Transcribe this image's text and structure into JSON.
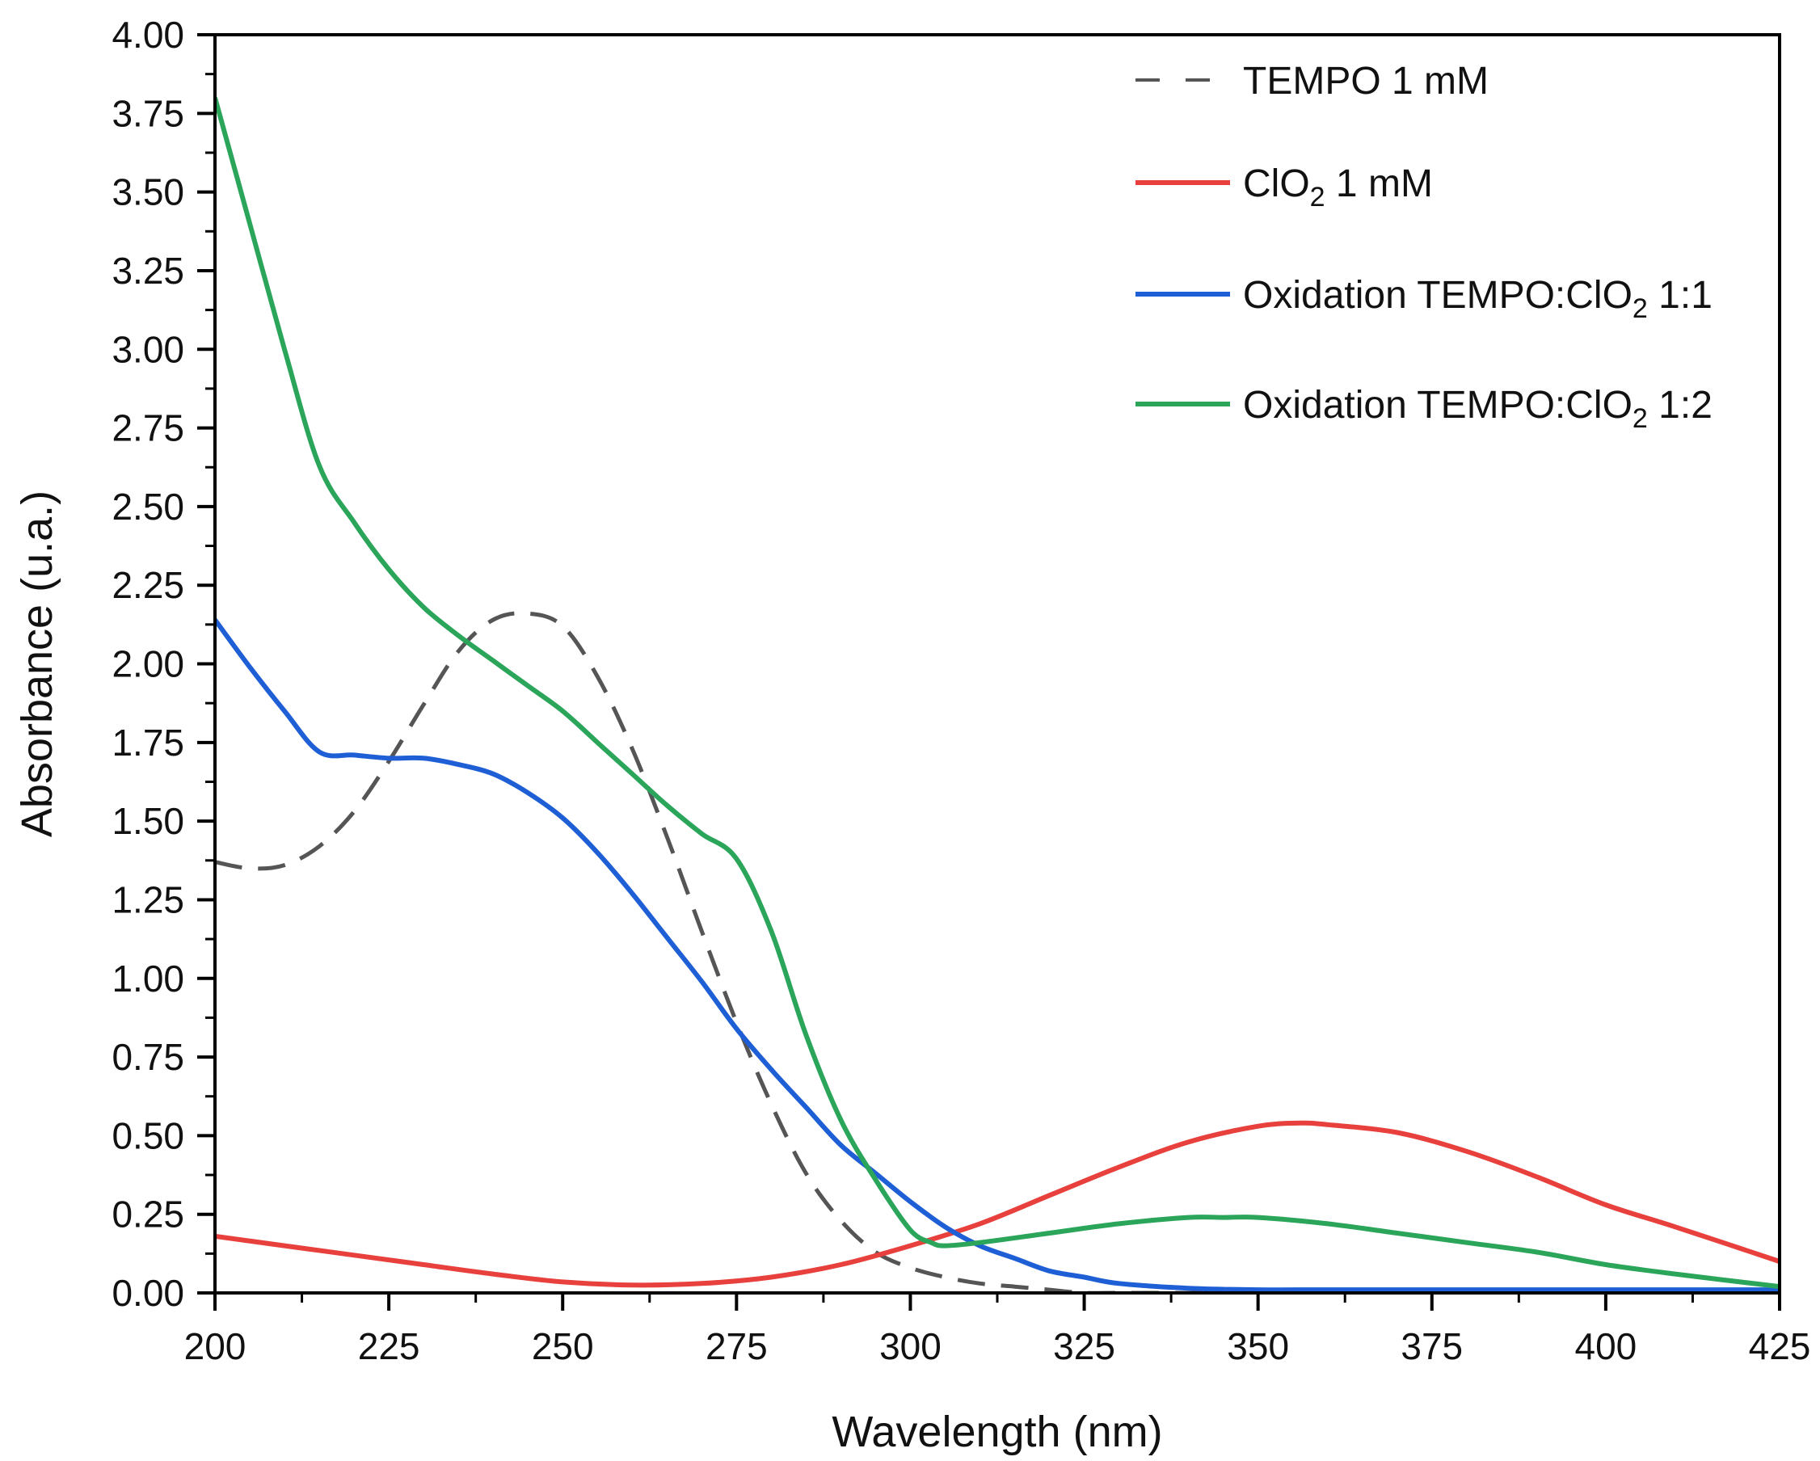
{
  "chart_data": {
    "type": "line",
    "xlabel": "Wavelength (nm)",
    "ylabel": "Absorbance (u.a.)",
    "xlim": [
      200,
      425
    ],
    "ylim": [
      0,
      4
    ],
    "xticks": [
      200,
      225,
      250,
      275,
      300,
      325,
      350,
      375,
      400,
      425
    ],
    "xtick_labels": [
      "200",
      "225",
      "250",
      "275",
      "300",
      "325",
      "350",
      "375",
      "400",
      "425"
    ],
    "yticks": [
      0,
      0.25,
      0.5,
      0.75,
      1.0,
      1.25,
      1.5,
      1.75,
      2.0,
      2.25,
      2.5,
      2.75,
      3.0,
      3.25,
      3.5,
      3.75,
      4.0
    ],
    "ytick_labels": [
      "0.00",
      "0.25",
      "0.50",
      "0.75",
      "1.00",
      "1.25",
      "1.50",
      "1.75",
      "2.00",
      "2.25",
      "2.50",
      "2.75",
      "3.00",
      "3.25",
      "3.50",
      "3.75",
      "4.00"
    ],
    "grid": false,
    "legend_position": "top-right",
    "series": [
      {
        "name": "TEMPO 1 mM",
        "legend_main": "TEMPO 1 mM",
        "legend_sub": "",
        "legend_tail": "",
        "color": "#555555",
        "dash": "dashed",
        "x": [
          200,
          205,
          210,
          215,
          220,
          225,
          230,
          235,
          240,
          245,
          250,
          255,
          260,
          265,
          270,
          275,
          280,
          285,
          290,
          295,
          300,
          305,
          310,
          315,
          320,
          325,
          330,
          340,
          350,
          360
        ],
        "y": [
          1.37,
          1.35,
          1.36,
          1.42,
          1.53,
          1.69,
          1.87,
          2.04,
          2.14,
          2.16,
          2.12,
          1.96,
          1.73,
          1.45,
          1.15,
          0.86,
          0.6,
          0.38,
          0.23,
          0.13,
          0.08,
          0.05,
          0.03,
          0.02,
          0.01,
          0.0,
          0.0,
          0.0,
          0.0,
          0.0
        ]
      },
      {
        "name": "ClO2 1 mM",
        "legend_main": "ClO",
        "legend_sub": "2",
        "legend_tail": " 1 mM",
        "color": "#e8403c",
        "dash": "solid",
        "x": [
          200,
          210,
          220,
          230,
          240,
          250,
          260,
          270,
          280,
          290,
          300,
          310,
          320,
          330,
          340,
          350,
          356,
          360,
          370,
          380,
          390,
          400,
          410,
          425
        ],
        "y": [
          0.18,
          0.15,
          0.12,
          0.09,
          0.06,
          0.035,
          0.025,
          0.03,
          0.05,
          0.09,
          0.15,
          0.22,
          0.31,
          0.4,
          0.48,
          0.53,
          0.54,
          0.535,
          0.51,
          0.45,
          0.37,
          0.28,
          0.21,
          0.1
        ]
      },
      {
        "name": "Oxidation TEMPO:ClO2 1:1",
        "legend_main": "Oxidation TEMPO:ClO",
        "legend_sub": "2",
        "legend_tail": " 1:1",
        "color": "#1f5fd6",
        "dash": "solid",
        "x": [
          200,
          205,
          210,
          215,
          220,
          225,
          230,
          235,
          240,
          245,
          250,
          255,
          260,
          265,
          270,
          275,
          280,
          285,
          290,
          295,
          300,
          305,
          310,
          315,
          320,
          325,
          330,
          340,
          350,
          360,
          380,
          400,
          425
        ],
        "y": [
          2.14,
          1.99,
          1.85,
          1.72,
          1.71,
          1.7,
          1.7,
          1.68,
          1.65,
          1.59,
          1.51,
          1.4,
          1.27,
          1.13,
          0.99,
          0.84,
          0.71,
          0.59,
          0.47,
          0.38,
          0.29,
          0.21,
          0.15,
          0.11,
          0.07,
          0.05,
          0.03,
          0.015,
          0.01,
          0.01,
          0.01,
          0.01,
          0.01
        ]
      },
      {
        "name": "Oxidation TEMPO:ClO2 1:2",
        "legend_main": "Oxidation TEMPO:ClO",
        "legend_sub": "2",
        "legend_tail": " 1:2",
        "color": "#2aa55a",
        "dash": "solid",
        "x": [
          200,
          205,
          210,
          215,
          220,
          225,
          230,
          235,
          240,
          245,
          250,
          255,
          260,
          265,
          270,
          275,
          280,
          285,
          290,
          295,
          300,
          303,
          305,
          310,
          320,
          330,
          340,
          345,
          350,
          360,
          370,
          380,
          390,
          400,
          410,
          425
        ],
        "y": [
          3.8,
          3.4,
          3.0,
          2.63,
          2.45,
          2.3,
          2.18,
          2.09,
          2.01,
          1.93,
          1.85,
          1.75,
          1.65,
          1.55,
          1.46,
          1.38,
          1.15,
          0.82,
          0.55,
          0.36,
          0.2,
          0.16,
          0.15,
          0.16,
          0.19,
          0.22,
          0.24,
          0.24,
          0.24,
          0.22,
          0.19,
          0.16,
          0.13,
          0.09,
          0.06,
          0.02
        ]
      }
    ]
  }
}
